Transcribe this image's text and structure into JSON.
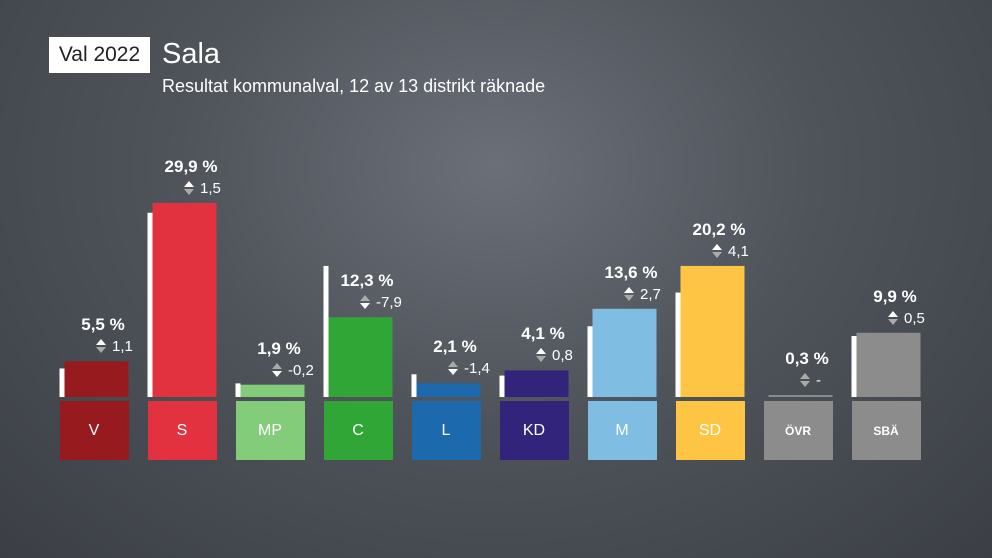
{
  "header": {
    "badge": "Val 2022",
    "title": "Sala",
    "subtitle": "Resultat kommunalval, 12 av 13 distrikt räknade"
  },
  "chart_data": {
    "type": "bar",
    "title": "Sala",
    "subtitle": "Resultat kommunalval, 12 av 13 distrikt räknade",
    "unit": "%",
    "categories": [
      "V",
      "S",
      "MP",
      "C",
      "L",
      "KD",
      "M",
      "SD",
      "ÖVR",
      "SBÄ"
    ],
    "series": [
      {
        "values": [
          5.5,
          29.9,
          1.9,
          12.3,
          2.1,
          4.1,
          13.6,
          20.2,
          0.3,
          9.9
        ]
      },
      {
        "values": [
          4.4,
          28.4,
          2.1,
          20.2,
          3.5,
          3.3,
          10.9,
          16.1,
          null,
          9.4
        ]
      }
    ],
    "value_labels": [
      "5,5 %",
      "29,9 %",
      "1,9 %",
      "12,3 %",
      "2,1 %",
      "4,1 %",
      "13,6 %",
      "20,2 %",
      "0,3 %",
      "9,9 %"
    ],
    "change_labels": [
      "1,1",
      "1,5",
      "-0,2",
      "-7,9",
      "-1,4",
      "0,8",
      "2,7",
      "4,1",
      "-",
      "0,5"
    ],
    "colors": [
      "#971a1f",
      "#e2323f",
      "#83cc7a",
      "#30a637",
      "#1d69ad",
      "#32237b",
      "#7fbde2",
      "#fec444",
      "#8c8c8c",
      "#8c8c8c"
    ],
    "tile_text_colors": [
      "#ffffff",
      "#ffffff",
      "#ffffff",
      "#ffffff",
      "#ffffff",
      "#ffffff",
      "#ffffff",
      "#ffffff",
      "#ffffff",
      "#ffffff"
    ],
    "previous_bar_color": "#ffffff",
    "ylim": [
      0,
      30
    ],
    "grid": false,
    "legend": "none"
  }
}
